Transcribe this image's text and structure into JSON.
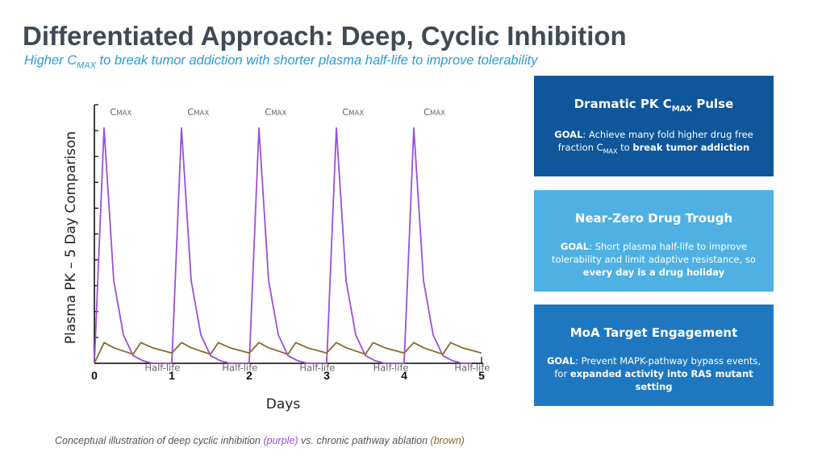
{
  "header": {
    "title": "Differentiated Approach: Deep, Cyclic Inhibition",
    "subtitle_pre": "Higher C",
    "subtitle_sub": "MAX",
    "subtitle_post": " to break tumor addiction with shorter plasma half-life to improve tolerability"
  },
  "chart_data": {
    "type": "line",
    "xlabel": "Days",
    "ylabel": "Plasma PK – 5 Day Comparison",
    "xlim": [
      0,
      5
    ],
    "ylim": [
      0,
      100
    ],
    "x_ticks": [
      "0",
      "1",
      "2",
      "3",
      "4",
      "5"
    ],
    "grid": false,
    "series": [
      {
        "color": "#9b4fd8",
        "x": [
          0,
          0.125,
          0.25,
          0.375,
          0.5,
          0.625,
          0.75,
          0.875,
          1.0,
          1.125,
          1.25,
          1.375,
          1.5,
          1.625,
          1.75,
          1.875,
          2.0,
          2.125,
          2.25,
          2.375,
          2.5,
          2.625,
          2.75,
          2.875,
          3.0,
          3.125,
          3.25,
          3.375,
          3.5,
          3.625,
          3.75,
          3.875,
          4.0,
          4.125,
          4.25,
          4.375,
          4.5,
          4.625,
          4.75,
          4.875
        ],
        "y": [
          0,
          91,
          32,
          11,
          3,
          1,
          0,
          0,
          0,
          91,
          32,
          11,
          3,
          1,
          0,
          0,
          0,
          91,
          32,
          11,
          3,
          1,
          0,
          0,
          0,
          91,
          32,
          11,
          3,
          1,
          0,
          0,
          0,
          91,
          32,
          11,
          3,
          1,
          0,
          0
        ]
      },
      {
        "color": "#8a6a2a",
        "x": [
          0,
          0.125,
          0.25,
          0.5,
          0.6,
          0.75,
          1.0,
          1.125,
          1.25,
          1.5,
          1.6,
          1.75,
          2.0,
          2.125,
          2.25,
          2.5,
          2.6,
          2.75,
          3.0,
          3.125,
          3.25,
          3.5,
          3.6,
          3.75,
          4.0,
          4.125,
          4.25,
          4.5,
          4.6,
          4.75,
          5.0
        ],
        "y": [
          0,
          8,
          6,
          3.5,
          8,
          6,
          4,
          8,
          6,
          3.5,
          8,
          6,
          4,
          8,
          6,
          3.5,
          8,
          6,
          4,
          8,
          6,
          3.5,
          8,
          6,
          4,
          8,
          6,
          3.5,
          8,
          6,
          4
        ]
      }
    ],
    "annotations": [
      {
        "text": "C",
        "sub": "MAX",
        "x": 0.2,
        "y": 96
      },
      {
        "text": "C",
        "sub": "MAX",
        "x": 1.2,
        "y": 96
      },
      {
        "text": "C",
        "sub": "MAX",
        "x": 2.2,
        "y": 96
      },
      {
        "text": "C",
        "sub": "MAX",
        "x": 3.2,
        "y": 96
      },
      {
        "text": "C",
        "sub": "MAX",
        "x": 4.25,
        "y": 96
      },
      {
        "text": "Half-life",
        "x": 0.65,
        "y": -3
      },
      {
        "text": "Half-life",
        "x": 1.65,
        "y": -3
      },
      {
        "text": "Half-life",
        "x": 2.65,
        "y": -3
      },
      {
        "text": "Half-life",
        "x": 3.6,
        "y": -3
      },
      {
        "text": "Half-life",
        "x": 4.65,
        "y": -3
      }
    ]
  },
  "boxes": [
    {
      "title_pre": "Dramatic PK C",
      "title_sub": "MAX",
      "title_post": " Pulse",
      "goal_label": "GOAL",
      "body_1": ": Achieve many fold higher drug free fraction C",
      "body_sub": "MAX",
      "body_2": " to ",
      "body_bold": "break tumor addiction"
    },
    {
      "title": "Near-Zero Drug Trough",
      "goal_label": "GOAL",
      "body_1": ": Short plasma half-life to improve tolerability and limit adaptive resistance, so ",
      "body_bold": "every day is a drug holiday"
    },
    {
      "title": "MoA Target Engagement",
      "goal_label": "GOAL",
      "body_1": ": Prevent MAPK-pathway bypass events, for ",
      "body_bold": "expanded activity into RAS mutant setting"
    }
  ],
  "caption": {
    "pre": "Conceptual illustration of deep cyclic inhibition ",
    "purple": "(purple)",
    "mid": " vs. chronic pathway ablation ",
    "brown": "(brown)"
  }
}
